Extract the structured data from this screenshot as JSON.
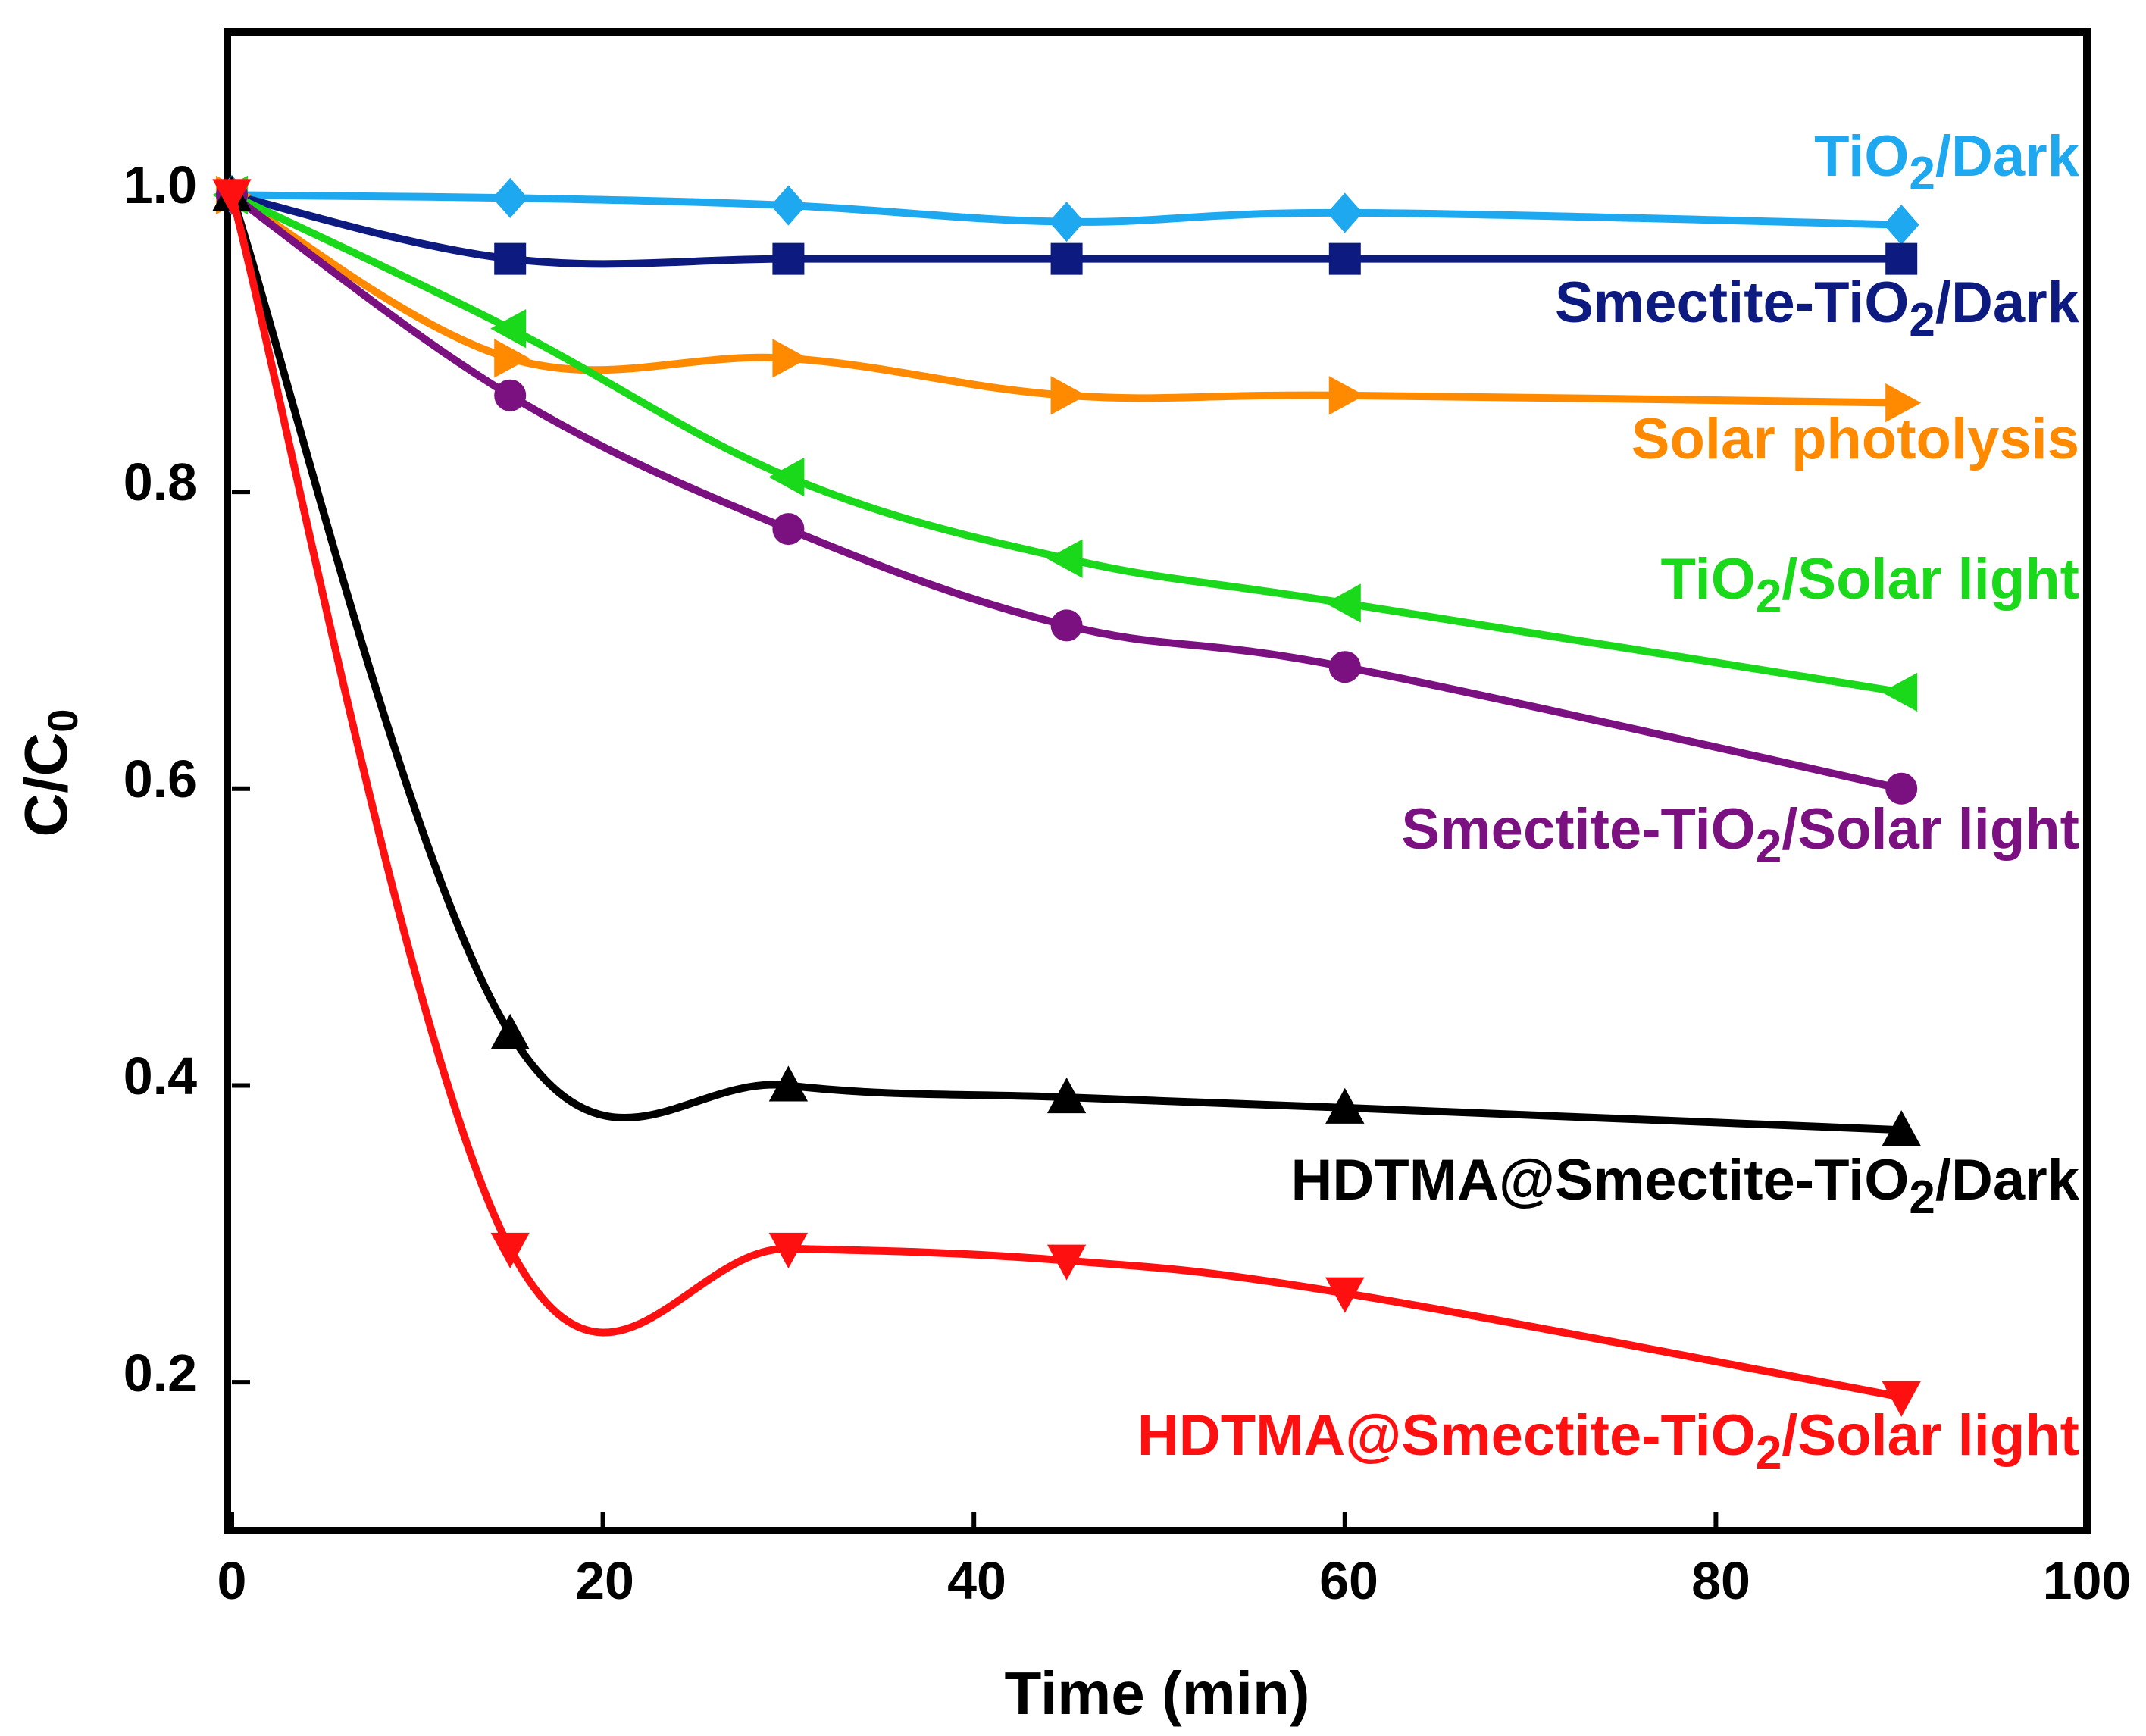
{
  "chart_data": {
    "type": "line",
    "title": "",
    "xlabel": "Time (min)",
    "ylabel": "C/C0",
    "ylabel_main": "C/C",
    "ylabel_sub": "0",
    "xlim": [
      0,
      100
    ],
    "ylim": [
      0.1,
      1.11
    ],
    "xticks": [
      0,
      20,
      40,
      60,
      80,
      100
    ],
    "xtick_labels": [
      "0",
      "20",
      "40",
      "60",
      "80",
      "100"
    ],
    "yticks": [
      0.2,
      0.4,
      0.6,
      0.8,
      1.0
    ],
    "ytick_labels": [
      "0.2",
      "0.4",
      "0.6",
      "0.8",
      "1.0"
    ],
    "grid": false,
    "x": [
      0,
      15,
      30,
      45,
      60,
      90
    ],
    "series": [
      {
        "name": "TiO2/Dark",
        "label_parts": [
          "TiO",
          "2",
          "/Dark"
        ],
        "color": "#1EA8F0",
        "marker": "diamond",
        "values": [
          1.0,
          0.998,
          0.993,
          0.982,
          0.988,
          0.98
        ]
      },
      {
        "name": "Smectite-TiO2/Dark",
        "label_parts": [
          "Smectite-TiO",
          "2",
          "/Dark"
        ],
        "color": "#0D1A80",
        "marker": "square",
        "values": [
          1.0,
          0.957,
          0.957,
          0.957,
          0.957,
          0.957
        ]
      },
      {
        "name": "Solar photolysis",
        "label_parts": [
          "Solar photolysis",
          "",
          ""
        ],
        "color": "#FF8A00",
        "marker": "right-triangle",
        "values": [
          1.0,
          0.89,
          0.89,
          0.865,
          0.865,
          0.86
        ]
      },
      {
        "name": "TiO2/Solar light",
        "label_parts": [
          "TiO",
          "2",
          "/Solar light"
        ],
        "color": "#1AD81A",
        "marker": "left-triangle",
        "values": [
          1.0,
          0.91,
          0.81,
          0.755,
          0.725,
          0.665
        ]
      },
      {
        "name": "Smectite-TiO2/Solar light",
        "label_parts": [
          "Smectite-TiO",
          "2",
          "/Solar light"
        ],
        "color": "#7B1080",
        "marker": "circle",
        "values": [
          1.0,
          0.865,
          0.775,
          0.71,
          0.682,
          0.6
        ]
      },
      {
        "name": "HDTMA@Smectite-TiO2/Dark",
        "label_parts": [
          "HDTMA@Smectite-TiO",
          "2",
          "/Dark"
        ],
        "color": "#000000",
        "marker": "up-triangle",
        "values": [
          1.0,
          0.435,
          0.4,
          0.392,
          0.385,
          0.37
        ]
      },
      {
        "name": "HDTMA@Smectite-TiO2/Solar light",
        "label_parts": [
          "HDTMA@Smectite-TiO",
          "2",
          "/Solar light"
        ],
        "color": "#FF1010",
        "marker": "down-triangle",
        "values": [
          1.0,
          0.29,
          0.29,
          0.282,
          0.26,
          0.19
        ]
      }
    ]
  }
}
